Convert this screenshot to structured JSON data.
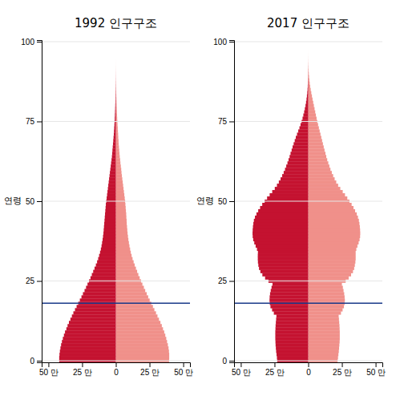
{
  "chart_data": [
    {
      "type": "bar",
      "orientation": "horizontal",
      "title": "1992 인구구조",
      "y_label": "연령",
      "y": [
        0,
        1,
        2,
        3,
        4,
        5,
        6,
        7,
        8,
        9,
        10,
        11,
        12,
        13,
        14,
        15,
        16,
        17,
        18,
        19,
        20,
        21,
        22,
        23,
        24,
        25,
        26,
        27,
        28,
        29,
        30,
        31,
        32,
        33,
        34,
        35,
        36,
        37,
        38,
        39,
        40,
        41,
        42,
        43,
        44,
        45,
        46,
        47,
        48,
        49,
        50,
        51,
        52,
        53,
        54,
        55,
        56,
        57,
        58,
        59,
        60,
        61,
        62,
        63,
        64,
        65,
        66,
        67,
        68,
        69,
        70,
        71,
        72,
        73,
        74,
        75,
        76,
        77,
        78,
        79,
        80,
        81,
        82,
        83,
        84,
        85,
        86,
        87,
        88,
        89,
        90,
        91,
        92,
        93,
        94,
        95,
        96,
        97,
        98,
        99
      ],
      "series": [
        {
          "color": "#f0908a",
          "values": [
            395000,
            396000,
            396000,
            394000,
            391000,
            386000,
            380000,
            374000,
            367000,
            359000,
            350000,
            341000,
            331000,
            320000,
            309000,
            298000,
            286000,
            275000,
            263000,
            251000,
            240000,
            229000,
            218000,
            208000,
            197000,
            187000,
            177000,
            167000,
            158000,
            149000,
            140000,
            132000,
            124000,
            117000,
            111000,
            106000,
            101000,
            97000,
            93000,
            90000,
            87000,
            85000,
            83000,
            81000,
            80000,
            78000,
            77000,
            75000,
            73000,
            71000,
            69000,
            66000,
            63000,
            60000,
            57000,
            54000,
            51000,
            48000,
            45000,
            42000,
            40000,
            37000,
            34000,
            32000,
            29000,
            27000,
            25000,
            23000,
            21000,
            20000,
            18000,
            17000,
            15500,
            14000,
            12500,
            11200,
            9900,
            8700,
            7600,
            6600,
            5700,
            4900,
            4100,
            3400,
            2800,
            2200,
            1700,
            1300,
            960,
            690,
            480,
            325,
            213,
            134,
            81,
            46,
            25,
            13,
            6,
            2
          ]
        },
        {
          "color": "#c41230",
          "values": [
            -420000,
            -420000,
            -418000,
            -415000,
            -411000,
            -406000,
            -400000,
            -393000,
            -385000,
            -377000,
            -367000,
            -358000,
            -348000,
            -337000,
            -326000,
            -315000,
            -303000,
            -291000,
            -279000,
            -267000,
            -255000,
            -244000,
            -232000,
            -221000,
            -210000,
            -199000,
            -188000,
            -178000,
            -168000,
            -158000,
            -148000,
            -139000,
            -131000,
            -124000,
            -117000,
            -111000,
            -106000,
            -102000,
            -98000,
            -95000,
            -92000,
            -90000,
            -88000,
            -86000,
            -84000,
            -82000,
            -80000,
            -78000,
            -76000,
            -74000,
            -71000,
            -68000,
            -65000,
            -62000,
            -59000,
            -56000,
            -53000,
            -50000,
            -47000,
            -44000,
            -41000,
            -38000,
            -35000,
            -32000,
            -29000,
            -27000,
            -25000,
            -23000,
            -21000,
            -19000,
            -17000,
            -15000,
            -13500,
            -12000,
            -10500,
            -9200,
            -8000,
            -6900,
            -5900,
            -5000,
            -4200,
            -3500,
            -2800,
            -2300,
            -1800,
            -1400,
            -1050,
            -780,
            -560,
            -390,
            -265,
            -175,
            -110,
            -65,
            -37,
            -20,
            -10,
            -5,
            -2,
            -1
          ]
        }
      ],
      "xlim": [
        -550000,
        550000
      ],
      "xticks": [
        {
          "value": -500000,
          "label": "50 만"
        },
        {
          "value": -250000,
          "label": "25 만"
        },
        0,
        {
          "value": 250000,
          "label": "25 만"
        },
        {
          "value": 500000,
          "label": "50 만"
        }
      ],
      "ylim": [
        -0.5,
        100.5
      ],
      "yticks": [
        0,
        25,
        50,
        75,
        100
      ],
      "grid": true,
      "reference_lines": [
        {
          "y": 18,
          "color": "#1a3a8a"
        }
      ]
    },
    {
      "type": "bar",
      "orientation": "horizontal",
      "title": "2017 인구구조",
      "y_label": "연령",
      "y": [
        0,
        1,
        2,
        3,
        4,
        5,
        6,
        7,
        8,
        9,
        10,
        11,
        12,
        13,
        14,
        15,
        16,
        17,
        18,
        19,
        20,
        21,
        22,
        23,
        24,
        25,
        26,
        27,
        28,
        29,
        30,
        31,
        32,
        33,
        34,
        35,
        36,
        37,
        38,
        39,
        40,
        41,
        42,
        43,
        44,
        45,
        46,
        47,
        48,
        49,
        50,
        51,
        52,
        53,
        54,
        55,
        56,
        57,
        58,
        59,
        60,
        61,
        62,
        63,
        64,
        65,
        66,
        67,
        68,
        69,
        70,
        71,
        72,
        73,
        74,
        75,
        76,
        77,
        78,
        79,
        80,
        81,
        82,
        83,
        84,
        85,
        86,
        87,
        88,
        89,
        90,
        91,
        92,
        93,
        94,
        95,
        96,
        97,
        98,
        99
      ],
      "series": [
        {
          "color": "#f0908a",
          "values": [
            218000,
            221000,
            224000,
            227000,
            229000,
            231000,
            233000,
            234000,
            234000,
            234000,
            233000,
            232000,
            230000,
            228000,
            226000,
            243000,
            255000,
            265000,
            270000,
            272000,
            270000,
            267000,
            262000,
            257000,
            250000,
            278000,
            300000,
            318000,
            332000,
            341000,
            346000,
            350000,
            352000,
            352000,
            352000,
            357000,
            365000,
            374000,
            381000,
            385000,
            386000,
            385000,
            383000,
            380000,
            376000,
            369000,
            360000,
            348000,
            336000,
            322000,
            306000,
            290000,
            273000,
            256000,
            238000,
            222000,
            208000,
            196000,
            185000,
            175000,
            165000,
            157000,
            149000,
            141000,
            134000,
            128000,
            121000,
            115000,
            109000,
            103000,
            97000,
            91000,
            85000,
            79000,
            73000,
            67000,
            62000,
            57000,
            52000,
            47000,
            42000,
            37000,
            32000,
            27500,
            22800,
            18400,
            14500,
            11200,
            8500,
            6200,
            4400,
            3000,
            1960,
            1220,
            720,
            400,
            210,
            103,
            46,
            18
          ]
        },
        {
          "color": "#c41230",
          "values": [
            -230000,
            -232000,
            -235000,
            -238000,
            -240000,
            -242000,
            -243000,
            -244000,
            -244000,
            -244000,
            -243000,
            -242000,
            -240000,
            -238000,
            -236000,
            -255000,
            -268000,
            -280000,
            -285000,
            -287000,
            -286000,
            -283000,
            -278000,
            -272000,
            -265000,
            -295000,
            -320000,
            -340000,
            -355000,
            -365000,
            -370000,
            -373000,
            -374000,
            -374000,
            -373000,
            -380000,
            -390000,
            -400000,
            -408000,
            -412000,
            -413000,
            -412000,
            -410000,
            -407000,
            -403000,
            -395000,
            -384000,
            -371000,
            -357000,
            -341000,
            -323000,
            -305000,
            -286000,
            -267000,
            -248000,
            -232000,
            -218000,
            -205000,
            -193000,
            -182000,
            -172000,
            -163000,
            -154000,
            -146000,
            -138000,
            -131000,
            -123000,
            -116000,
            -108000,
            -100000,
            -92000,
            -83000,
            -74000,
            -65000,
            -57000,
            -49000,
            -42000,
            -36000,
            -30000,
            -25000,
            -20000,
            -16000,
            -12500,
            -9500,
            -7000,
            -5000,
            -3500,
            -2400,
            -1600,
            -1000,
            -610,
            -360,
            -205,
            -112,
            -58,
            -28,
            -13,
            -5,
            -2,
            -1
          ]
        }
      ],
      "xlim": [
        -550000,
        550000
      ],
      "xticks": [
        {
          "value": -500000,
          "label": "50 만"
        },
        {
          "value": -250000,
          "label": "25 만"
        },
        0,
        {
          "value": 250000,
          "label": "25 만"
        },
        {
          "value": 500000,
          "label": "50 만"
        }
      ],
      "ylim": [
        -0.5,
        100.5
      ],
      "yticks": [
        0,
        25,
        50,
        75,
        100
      ],
      "grid": true,
      "reference_lines": [
        {
          "y": 18,
          "color": "#1a3a8a"
        }
      ]
    }
  ]
}
